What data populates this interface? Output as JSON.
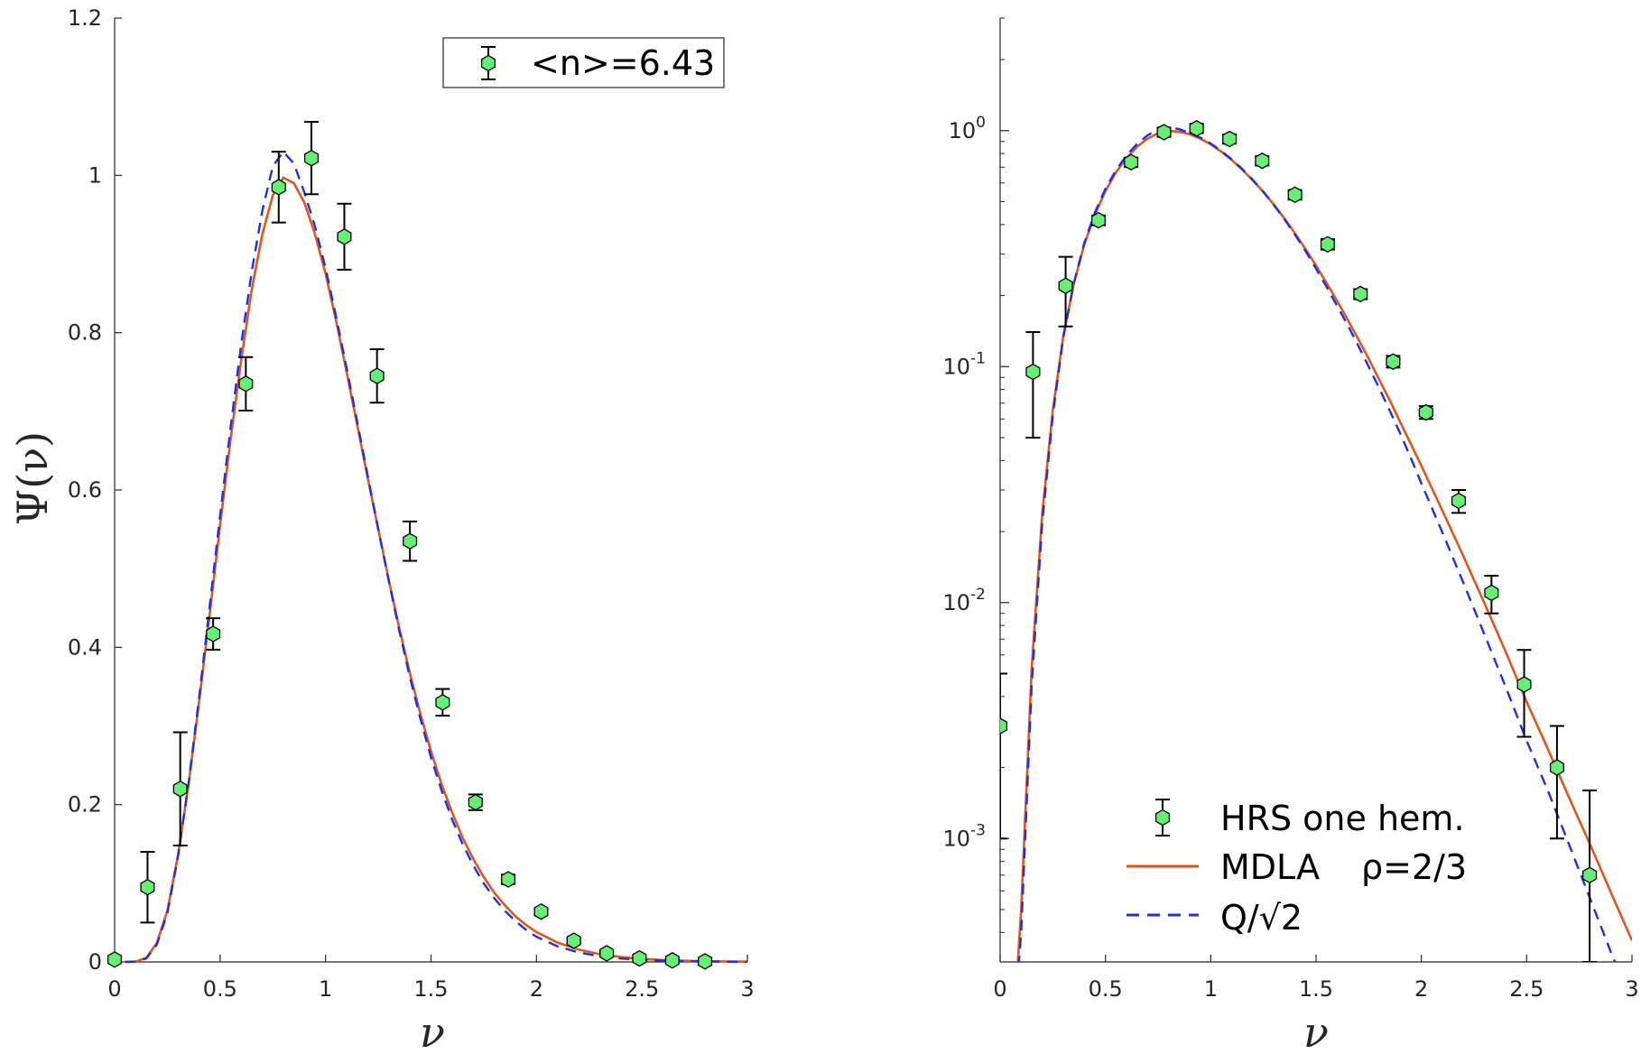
{
  "chart_data": [
    {
      "type": "scatter",
      "xlabel": "ν",
      "ylabel": "Ψ(ν)",
      "xlim": [
        0,
        3
      ],
      "ylim": [
        0,
        1.2
      ],
      "yscale": "linear",
      "xticks": [
        "0",
        "0.5",
        "1",
        "1.5",
        "2",
        "2.5",
        "3"
      ],
      "yticks": [
        "0",
        "0.2",
        "0.4",
        "0.6",
        "0.8",
        "1",
        "1.2"
      ],
      "grid": false,
      "legend": {
        "placement": "top-right",
        "entries": [
          "<n>=6.43"
        ]
      },
      "series": [
        {
          "name": "<n>=6.43",
          "kind": "errorbar",
          "color": "#66ee77",
          "x": [
            0.0,
            0.156,
            0.311,
            0.467,
            0.622,
            0.778,
            0.933,
            1.089,
            1.244,
            1.4,
            1.555,
            1.711,
            1.866,
            2.022,
            2.177,
            2.333,
            2.488,
            2.644,
            2.799
          ],
          "y": [
            0.003,
            0.095,
            0.22,
            0.417,
            0.735,
            0.985,
            1.022,
            0.922,
            0.745,
            0.535,
            0.33,
            0.203,
            0.105,
            0.064,
            0.027,
            0.011,
            0.0045,
            0.002,
            0.0007
          ],
          "yerr": [
            0.002,
            0.045,
            0.072,
            0.02,
            0.034,
            0.045,
            0.046,
            0.042,
            0.034,
            0.025,
            0.017,
            0.01,
            0.006,
            0.004,
            0.003,
            0.002,
            0.0018,
            0.001,
            0.0009
          ]
        },
        {
          "name": "MDLA ρ=2/3",
          "kind": "line",
          "color": "#e0561e",
          "x": [
            0.05,
            0.1,
            0.15,
            0.2,
            0.25,
            0.3,
            0.35,
            0.4,
            0.45,
            0.5,
            0.55,
            0.6,
            0.65,
            0.7,
            0.75,
            0.8,
            0.85,
            0.9,
            0.95,
            1.0,
            1.05,
            1.1,
            1.15,
            1.2,
            1.25,
            1.3,
            1.35,
            1.4,
            1.45,
            1.5,
            1.55,
            1.6,
            1.65,
            1.7,
            1.75,
            1.8,
            1.85,
            1.9,
            1.95,
            2.0,
            2.1,
            2.2,
            2.3,
            2.4,
            2.5,
            2.6,
            2.7,
            2.8,
            2.9,
            3.0
          ],
          "y": [
            0.0001,
            0.0005,
            0.0053,
            0.024,
            0.065,
            0.135,
            0.225,
            0.33,
            0.44,
            0.555,
            0.665,
            0.765,
            0.855,
            0.925,
            0.975,
            0.997,
            0.99,
            0.965,
            0.925,
            0.875,
            0.815,
            0.75,
            0.683,
            0.615,
            0.55,
            0.485,
            0.424,
            0.367,
            0.315,
            0.268,
            0.226,
            0.19,
            0.158,
            0.131,
            0.108,
            0.088,
            0.072,
            0.058,
            0.047,
            0.038,
            0.0245,
            0.0157,
            0.0099,
            0.0062,
            0.0038,
            0.0024,
            0.0015,
            0.00095,
            0.00059,
            0.00037
          ]
        },
        {
          "name": "Q/√2",
          "kind": "line-dashed",
          "color": "#1f2ee8",
          "x": [
            0.05,
            0.1,
            0.15,
            0.2,
            0.25,
            0.3,
            0.35,
            0.4,
            0.45,
            0.5,
            0.55,
            0.6,
            0.65,
            0.7,
            0.75,
            0.8,
            0.85,
            0.9,
            0.95,
            1.0,
            1.05,
            1.1,
            1.15,
            1.2,
            1.25,
            1.3,
            1.35,
            1.4,
            1.45,
            1.5,
            1.55,
            1.6,
            1.65,
            1.7,
            1.75,
            1.8,
            1.85,
            1.9,
            1.95,
            2.0,
            2.1,
            2.2,
            2.3,
            2.4,
            2.5,
            2.6,
            2.7,
            2.8,
            2.9,
            3.0
          ],
          "y": [
            0.0001,
            0.0004,
            0.0045,
            0.022,
            0.062,
            0.133,
            0.226,
            0.335,
            0.45,
            0.567,
            0.68,
            0.785,
            0.878,
            0.955,
            1.012,
            1.03,
            1.015,
            0.978,
            0.935,
            0.882,
            0.82,
            0.755,
            0.687,
            0.618,
            0.55,
            0.484,
            0.421,
            0.362,
            0.309,
            0.26,
            0.218,
            0.181,
            0.15,
            0.123,
            0.1,
            0.081,
            0.065,
            0.052,
            0.041,
            0.032,
            0.0198,
            0.0121,
            0.0073,
            0.0044,
            0.0026,
            0.0016,
            0.00095,
            0.00056,
            0.00033,
            0.0002
          ]
        }
      ]
    },
    {
      "type": "scatter",
      "xlabel": "ν",
      "ylabel": "",
      "xlim": [
        0,
        3
      ],
      "ylim": [
        0.0003,
        3
      ],
      "yscale": "log",
      "xticks": [
        "0",
        "0.5",
        "1",
        "1.5",
        "2",
        "2.5",
        "3"
      ],
      "yticks": [
        {
          "base": "10",
          "exp": "-3",
          "value": 0.001
        },
        {
          "base": "10",
          "exp": "-2",
          "value": 0.01
        },
        {
          "base": "10",
          "exp": "-1",
          "value": 0.1
        },
        {
          "base": "10",
          "exp": "0",
          "value": 1
        }
      ],
      "grid": false,
      "legend": {
        "placement": "bottom-right",
        "entries": [
          {
            "label": "HRS one hem.",
            "kind": "errorbar"
          },
          {
            "label": "MDLA",
            "extra": "ρ=2/3",
            "kind": "line"
          },
          {
            "label": "Q/√2",
            "kind": "line-dashed"
          }
        ]
      },
      "series_ref": "same data as left panel"
    }
  ]
}
